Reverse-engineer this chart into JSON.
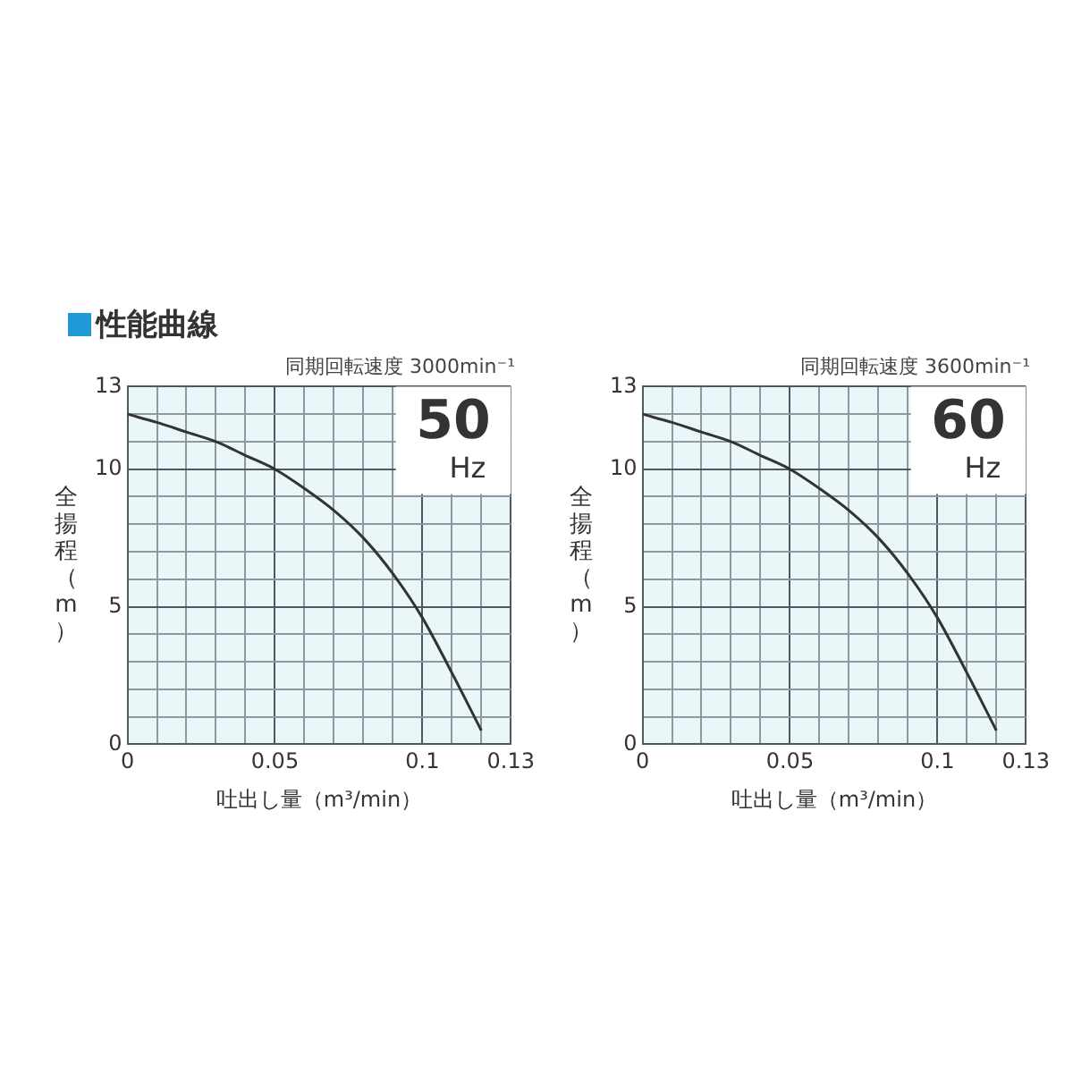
{
  "chart_data": [
    {
      "type": "line",
      "title": "性能曲線",
      "subtitle": "同期回転速度 3000min⁻¹",
      "xlabel": "吐出し量（m³/min）",
      "ylabel": "全揚程（m）",
      "annotations": [
        "50",
        "Hz"
      ],
      "x": [
        0,
        0.01,
        0.02,
        0.03,
        0.04,
        0.05,
        0.06,
        0.07,
        0.08,
        0.09,
        0.1,
        0.11,
        0.12
      ],
      "values": [
        12,
        11.7,
        11.35,
        11,
        10.5,
        10,
        9.3,
        8.5,
        7.5,
        6.2,
        4.6,
        2.6,
        0.5
      ],
      "color": "#333333",
      "marker": "none",
      "line_style": "solid",
      "xlim": [
        0,
        0.13
      ],
      "ylim": [
        0,
        13
      ],
      "xticks": [
        0,
        {
          "value": 0.01,
          "label": null
        },
        {
          "value": 0.02,
          "label": null
        },
        {
          "value": 0.03,
          "label": null
        },
        {
          "value": 0.04,
          "label": null
        },
        0.05,
        {
          "value": 0.06,
          "label": null
        },
        {
          "value": 0.07,
          "label": null
        },
        {
          "value": 0.08,
          "label": null
        },
        {
          "value": 0.09,
          "label": null
        },
        0.1,
        {
          "value": 0.11,
          "label": null
        },
        {
          "value": 0.12,
          "label": null
        },
        0.13
      ],
      "yticks": [
        0,
        {
          "value": 1,
          "label": null
        },
        {
          "value": 2,
          "label": null
        },
        {
          "value": 3,
          "label": null
        },
        {
          "value": 4,
          "label": null
        },
        5,
        {
          "value": 6,
          "label": null
        },
        {
          "value": 7,
          "label": null
        },
        {
          "value": 8,
          "label": null
        },
        {
          "value": 9,
          "label": null
        },
        10,
        {
          "value": 11,
          "label": null
        },
        {
          "value": 12,
          "label": null
        },
        13
      ],
      "grid": true
    },
    {
      "type": "line",
      "subtitle": "同期回転速度 3600min⁻¹",
      "xlabel": "吐出し量（m³/min）",
      "ylabel": "全揚程（m）",
      "annotations": [
        "60",
        "Hz"
      ],
      "x": [
        0,
        0.01,
        0.02,
        0.03,
        0.04,
        0.05,
        0.06,
        0.07,
        0.08,
        0.09,
        0.1,
        0.11,
        0.12
      ],
      "values": [
        12,
        11.7,
        11.35,
        11,
        10.5,
        10,
        9.3,
        8.5,
        7.5,
        6.2,
        4.6,
        2.6,
        0.5
      ],
      "color": "#333333",
      "marker": "none",
      "line_style": "solid",
      "xlim": [
        0,
        0.13
      ],
      "ylim": [
        0,
        13
      ],
      "xticks": [
        0,
        {
          "value": 0.01,
          "label": null
        },
        {
          "value": 0.02,
          "label": null
        },
        {
          "value": 0.03,
          "label": null
        },
        {
          "value": 0.04,
          "label": null
        },
        0.05,
        {
          "value": 0.06,
          "label": null
        },
        {
          "value": 0.07,
          "label": null
        },
        {
          "value": 0.08,
          "label": null
        },
        {
          "value": 0.09,
          "label": null
        },
        0.1,
        {
          "value": 0.11,
          "label": null
        },
        {
          "value": 0.12,
          "label": null
        },
        0.13
      ],
      "yticks": [
        0,
        {
          "value": 1,
          "label": null
        },
        {
          "value": 2,
          "label": null
        },
        {
          "value": 3,
          "label": null
        },
        {
          "value": 4,
          "label": null
        },
        5,
        {
          "value": 6,
          "label": null
        },
        {
          "value": 7,
          "label": null
        },
        {
          "value": 8,
          "label": null
        },
        {
          "value": 9,
          "label": null
        },
        10,
        {
          "value": 11,
          "label": null
        },
        {
          "value": 12,
          "label": null
        },
        13
      ],
      "grid": true
    }
  ]
}
